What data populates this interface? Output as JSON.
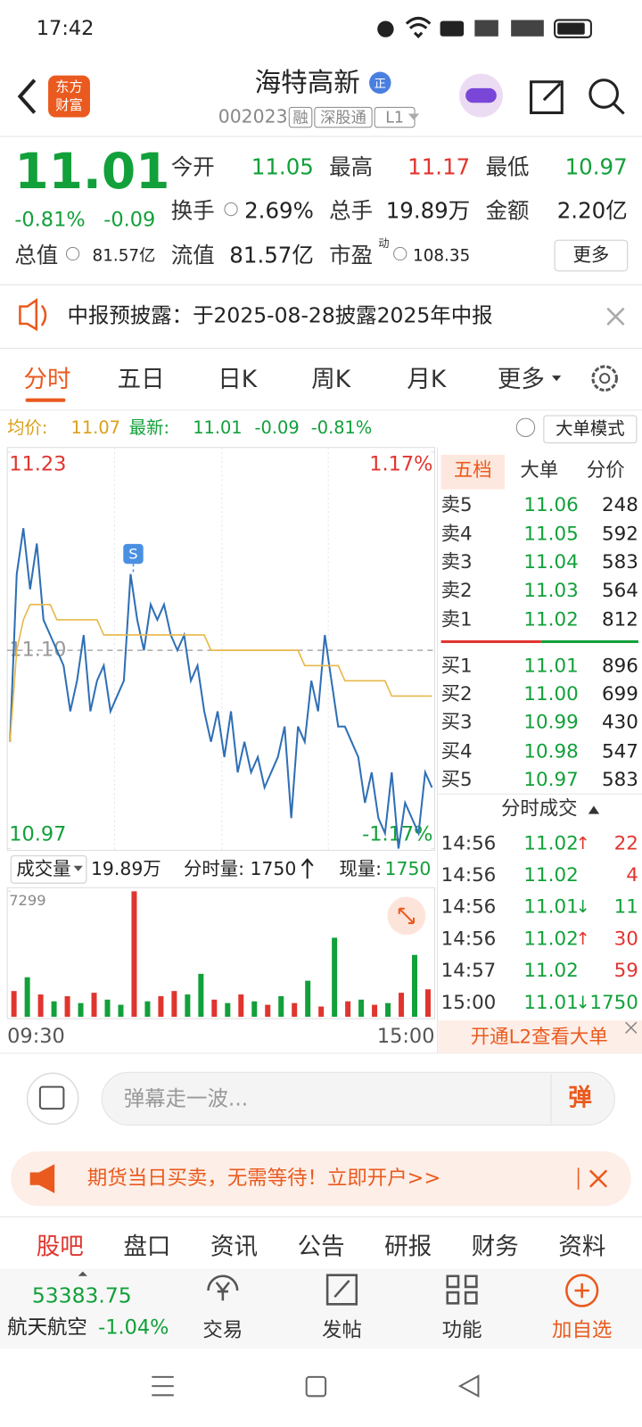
{
  "status_bar": {
    "time": "17:42"
  },
  "header": {
    "logo": [
      "东方",
      "财富"
    ],
    "title": "海特高新",
    "badge": "正",
    "code": "002023",
    "tags": [
      "融",
      "深股通",
      "L1"
    ]
  },
  "quote": {
    "price": "11.01",
    "change_pct": "-0.81%",
    "change": "-0.09",
    "stats": [
      {
        "label": "今开",
        "value": "11.05",
        "color": "#12a03a"
      },
      {
        "label": "最高",
        "value": "11.17",
        "color": "#e0352f"
      },
      {
        "label": "最低",
        "value": "10.97",
        "color": "#12a03a"
      },
      {
        "label": "换手",
        "value": "2.69%"
      },
      {
        "label": "总手",
        "value": "19.89万"
      },
      {
        "label": "金额",
        "value": "2.20亿"
      },
      {
        "label": "总值",
        "value": "81.57亿"
      },
      {
        "label": "流值",
        "value": "81.57亿"
      },
      {
        "label": "市盈",
        "sup": "动",
        "value": "108.35"
      }
    ],
    "more": "更多"
  },
  "notice": "中报预披露：于2025-08-28披露2025年中报",
  "tabs": [
    "分时",
    "五日",
    "日K",
    "周K",
    "月K",
    "更多"
  ],
  "summary": {
    "avg_label": "均价:",
    "avg": "11.07",
    "latest_label": "最新:",
    "latest": "11.01",
    "change": "-0.09",
    "change_pct": "-0.81%",
    "mode_button": "大单模式"
  },
  "chart_data": [
    {
      "type": "line",
      "ylim": [
        10.97,
        11.23
      ],
      "yticks": [
        10.97,
        {
          "value": 11.1,
          "label": "11.10"
        },
        11.23
      ],
      "y2lim": [
        -1.17,
        1.17
      ],
      "y2ticks": [
        {
          "value": -1.17,
          "label": "-1.17%"
        },
        {
          "value": 1.17,
          "label": "1.17%"
        }
      ],
      "xticks": [
        "09:30",
        "15:00"
      ],
      "signal": "S",
      "series": [
        {
          "color": "#2f6fb5",
          "values": [
            11.04,
            11.15,
            11.18,
            11.14,
            11.17,
            11.12,
            11.11,
            11.1,
            11.09,
            11.06,
            11.08,
            11.11,
            11.06,
            11.08,
            11.09,
            11.06,
            11.07,
            11.08,
            11.15,
            11.12,
            11.1,
            11.13,
            11.12,
            11.13,
            11.11,
            11.1,
            11.11,
            11.08,
            11.09,
            11.06,
            11.04,
            11.06,
            11.03,
            11.06,
            11.02,
            11.04,
            11.02,
            11.03,
            11.01,
            11.02,
            11.03,
            11.05,
            10.99,
            11.05,
            11.04,
            11.08,
            11.06,
            11.11,
            11.08,
            11.05,
            11.05,
            11.04,
            11.03,
            11.0,
            11.02,
            10.99,
            10.98,
            11.02,
            10.97,
            11.0,
            10.99,
            10.98,
            11.02,
            11.01
          ]
        },
        {
          "color": "#e8b84a",
          "values": [
            11.04,
            11.1,
            11.12,
            11.13,
            11.13,
            11.13,
            11.13,
            11.12,
            11.12,
            11.12,
            11.12,
            11.12,
            11.12,
            11.12,
            11.11,
            11.11,
            11.11,
            11.11,
            11.11,
            11.11,
            11.11,
            11.11,
            11.11,
            11.11,
            11.11,
            11.11,
            11.11,
            11.11,
            11.11,
            11.11,
            11.1,
            11.1,
            11.1,
            11.1,
            11.1,
            11.1,
            11.1,
            11.1,
            11.1,
            11.1,
            11.1,
            11.1,
            11.1,
            11.1,
            11.09,
            11.09,
            11.09,
            11.09,
            11.09,
            11.09,
            11.08,
            11.08,
            11.08,
            11.08,
            11.08,
            11.08,
            11.08,
            11.07,
            11.07,
            11.07,
            11.07,
            11.07,
            11.07,
            11.07
          ]
        }
      ]
    },
    {
      "type": "bar",
      "ylim": [
        0,
        7299
      ],
      "yticks": [
        7299
      ],
      "header": {
        "label": "成交量",
        "total": "19.89万",
        "tick_label": "分时量:",
        "tick_value": "1750",
        "now_label": "现量:",
        "now_value": "1750"
      },
      "values": [
        1500,
        2300,
        1300,
        900,
        1200,
        800,
        1400,
        1000,
        700,
        7299,
        900,
        1200,
        1500,
        1300,
        2500,
        1000,
        800,
        1300,
        900,
        700,
        1200,
        800,
        2100,
        600,
        4600,
        900,
        1000,
        700,
        800,
        1400,
        3600,
        1600
      ],
      "colors": [
        "#e0352f",
        "#12a03a",
        "#e0352f",
        "#12a03a",
        "#e0352f",
        "#12a03a",
        "#e0352f",
        "#12a03a",
        "#12a03a",
        "#e0352f",
        "#12a03a",
        "#e0352f",
        "#e0352f",
        "#12a03a",
        "#12a03a",
        "#e0352f",
        "#12a03a",
        "#e0352f",
        "#12a03a",
        "#e0352f",
        "#12a03a",
        "#e0352f",
        "#12a03a",
        "#e0352f",
        "#12a03a",
        "#e0352f",
        "#12a03a",
        "#e0352f",
        "#12a03a",
        "#e0352f",
        "#12a03a",
        "#e0352f"
      ]
    }
  ],
  "order_book": {
    "tabs": [
      "五档",
      "大单",
      "分价"
    ],
    "asks": [
      [
        "卖5",
        "11.06",
        "248"
      ],
      [
        "卖4",
        "11.05",
        "592"
      ],
      [
        "卖3",
        "11.04",
        "583"
      ],
      [
        "卖2",
        "11.03",
        "564"
      ],
      [
        "卖1",
        "11.02",
        "812"
      ]
    ],
    "bids": [
      [
        "买1",
        "11.01",
        "896"
      ],
      [
        "买2",
        "11.00",
        "699"
      ],
      [
        "买3",
        "10.99",
        "430"
      ],
      [
        "买4",
        "10.98",
        "547"
      ],
      [
        "买5",
        "10.97",
        "583"
      ]
    ],
    "trades_title": "分时成交",
    "trades": [
      {
        "time": "14:56",
        "price": "11.02",
        "arrow": "↑",
        "volume": "22",
        "color": "#e0352f"
      },
      {
        "time": "14:56",
        "price": "11.02",
        "volume": "4",
        "color": "#e0352f"
      },
      {
        "time": "14:56",
        "price": "11.01",
        "arrow": "↓",
        "volume": "11",
        "color": "#12a03a"
      },
      {
        "time": "14:56",
        "price": "11.02",
        "arrow": "↑",
        "volume": "30",
        "color": "#e0352f"
      },
      {
        "time": "14:57",
        "price": "11.02",
        "volume": "59",
        "color": "#e0352f"
      },
      {
        "time": "15:00",
        "price": "11.01",
        "arrow": "↓",
        "volume": "1750",
        "color": "#12a03a"
      }
    ],
    "footer": "开通L2查看大单"
  },
  "comment": {
    "placeholder": "弹幕走一波...",
    "button": "弹"
  },
  "ad": "期货当日买卖，无需等待！立即开户>>",
  "sections": [
    "股吧",
    "盘口",
    "资讯",
    "公告",
    "研报",
    "财务",
    "资料"
  ],
  "bottom_nav": {
    "index_value": "53383.75",
    "index_name": "航天航空",
    "index_change": "-1.04%",
    "items": [
      "交易",
      "发帖",
      "功能",
      "加自选"
    ]
  }
}
